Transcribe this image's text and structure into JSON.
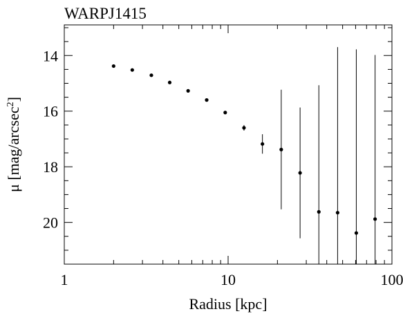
{
  "chart_data": {
    "type": "scatter",
    "title": "WARPJ1415",
    "xlabel": "Radius [kpc]",
    "ylabel_main": "μ [mag/arcsec",
    "ylabel_sup": "2",
    "ylabel_close": "]",
    "x_scale": "log",
    "xlim": [
      1,
      100
    ],
    "ylim": [
      21.5,
      12.9
    ],
    "y_inverted": true,
    "grid": false,
    "x_ticks": [
      {
        "value": 1,
        "label": "1"
      },
      {
        "value": 10,
        "label": "10"
      },
      {
        "value": 100,
        "label": "100"
      }
    ],
    "y_ticks": [
      {
        "value": 14,
        "label": "14"
      },
      {
        "value": 16,
        "label": "16"
      },
      {
        "value": 18,
        "label": "18"
      },
      {
        "value": 20,
        "label": "20"
      }
    ],
    "series": [
      {
        "x": [
          2.0,
          2.6,
          3.4,
          4.4,
          5.7,
          7.4,
          9.6,
          12.5,
          16.2,
          21.1,
          27.5,
          35.8,
          46.6,
          60.6,
          78.9
        ],
        "y": [
          14.38,
          14.52,
          14.71,
          14.97,
          15.27,
          15.6,
          16.05,
          16.6,
          17.18,
          17.38,
          18.22,
          19.62,
          19.65,
          20.38,
          19.88
        ],
        "yerr": [
          0.02,
          0.03,
          0.03,
          0.03,
          0.04,
          0.05,
          0.06,
          0.1,
          0.35,
          2.15,
          2.35,
          4.55,
          5.95,
          6.6,
          5.9
        ]
      }
    ]
  }
}
